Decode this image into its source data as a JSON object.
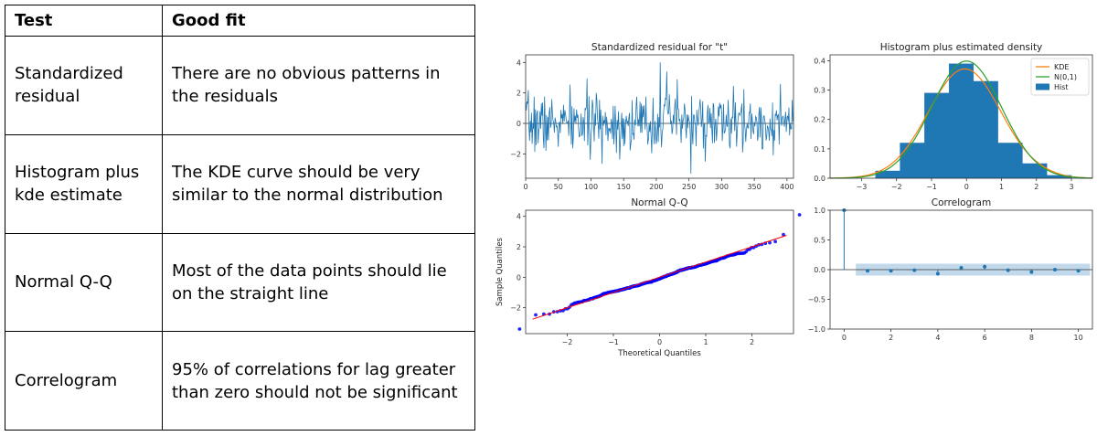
{
  "table": {
    "headers": [
      "Test",
      "Good fit"
    ],
    "rows": [
      {
        "test": "Standardized residual",
        "fit": "There are no obvious patterns in the residuals"
      },
      {
        "test": "Histogram plus kde estimate",
        "fit": "The KDE curve should be very similar to the normal distribution"
      },
      {
        "test": "Normal Q-Q",
        "fit": "Most of the data points should lie on the straight line"
      },
      {
        "test": "Correlogram",
        "fit": "95% of correlations for lag greater than zero should not be significant"
      }
    ]
  },
  "chart_data": [
    {
      "type": "line",
      "title": "Standardized residual for \"t\"",
      "xlim": [
        0,
        410
      ],
      "ylim": [
        -3.6,
        4.5
      ],
      "xticks": [
        0,
        50,
        100,
        150,
        200,
        250,
        300,
        350,
        400
      ],
      "yticks": [
        -2,
        0,
        2,
        4
      ],
      "seed": 7,
      "n": 410,
      "color": "#1f77b4",
      "hline": 0
    },
    {
      "type": "bar",
      "title": "Histogram plus estimated density",
      "xlim": [
        -3.9,
        3.6
      ],
      "ylim": [
        0,
        0.42
      ],
      "xticks": [
        -3,
        -2,
        -1,
        0,
        1,
        2,
        3
      ],
      "yticks": [
        0,
        0.1,
        0.2,
        0.3,
        0.4
      ],
      "bins": [
        {
          "x0": -2.6,
          "x1": -1.9,
          "y": 0.025
        },
        {
          "x0": -1.9,
          "x1": -1.2,
          "y": 0.12
        },
        {
          "x0": -1.2,
          "x1": -0.5,
          "y": 0.29
        },
        {
          "x0": -0.5,
          "x1": 0.2,
          "y": 0.39
        },
        {
          "x0": 0.2,
          "x1": 0.9,
          "y": 0.33
        },
        {
          "x0": 0.9,
          "x1": 1.6,
          "y": 0.12
        },
        {
          "x0": 1.6,
          "x1": 2.3,
          "y": 0.05
        },
        {
          "x0": 2.3,
          "x1": 3.0,
          "y": 0.01
        }
      ],
      "series": [
        {
          "name": "KDE",
          "color": "#ff7f0e"
        },
        {
          "name": "N(0,1)",
          "color": "#2ca02c"
        },
        {
          "name": "Hist",
          "color": "#1f77b4"
        }
      ],
      "legend": "top-right"
    },
    {
      "type": "scatter",
      "title": "Normal Q-Q",
      "xlabel": "Theoretical Quantiles",
      "ylabel": "Sample Quantiles",
      "xlim": [
        -2.9,
        2.9
      ],
      "ylim": [
        -3.7,
        4.4
      ],
      "xticks": [
        -2,
        -1,
        0,
        1,
        2
      ],
      "yticks": [
        -2,
        0,
        2,
        4
      ],
      "n": 410,
      "point_color": "#0000ff",
      "line_color": "#ff0000"
    },
    {
      "type": "stem",
      "title": "Correlogram",
      "xlim": [
        -0.6,
        10.6
      ],
      "ylim": [
        -1.0,
        1.0
      ],
      "xticks": [
        0,
        2,
        4,
        6,
        8,
        10
      ],
      "yticks": [
        -1.0,
        -0.5,
        0.0,
        0.5,
        1.0
      ],
      "lags": [
        0,
        1,
        2,
        3,
        4,
        5,
        6,
        7,
        8,
        9,
        10
      ],
      "values": [
        1.0,
        -0.02,
        -0.02,
        -0.01,
        -0.07,
        0.03,
        0.05,
        -0.01,
        -0.04,
        0.0,
        -0.02
      ],
      "conf": 0.1,
      "color": "#1f77b4"
    }
  ]
}
